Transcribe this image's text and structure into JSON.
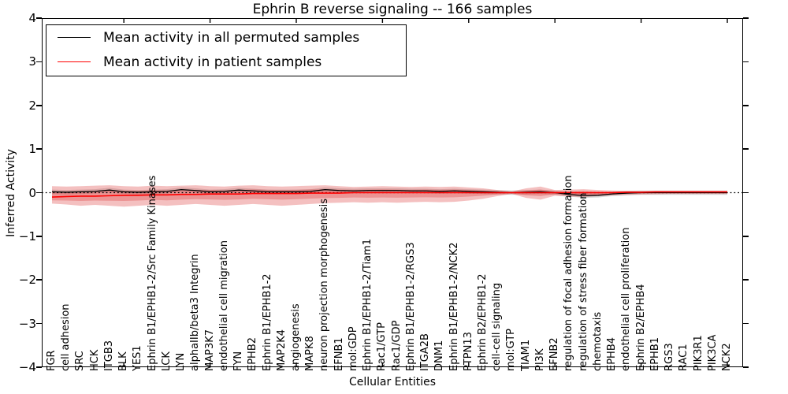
{
  "title": "Ephrin B reverse signaling -- 166 samples",
  "axes": {
    "ylabel": "Inferred Activity",
    "xlabel": "Cellular Entities",
    "ylim": [
      -4,
      4
    ],
    "yticks": [
      {
        "v": 4,
        "label": "4"
      },
      {
        "v": 3,
        "label": "3"
      },
      {
        "v": 2,
        "label": "2"
      },
      {
        "v": 1,
        "label": "1"
      },
      {
        "v": 0,
        "label": "0"
      },
      {
        "v": -1,
        "label": "−1"
      },
      {
        "v": -2,
        "label": "−2"
      },
      {
        "v": -3,
        "label": "−3"
      },
      {
        "v": -4,
        "label": "−4"
      }
    ]
  },
  "legend": {
    "items": [
      {
        "label": "Mean activity in all permuted samples",
        "color": "#000000"
      },
      {
        "label": "Mean activity in patient samples",
        "color": "#ff0000"
      }
    ]
  },
  "chart_data": {
    "type": "line",
    "title": "Ephrin B reverse signaling -- 166 samples",
    "xlabel": "Cellular Entities",
    "ylabel": "Inferred Activity",
    "ylim": [
      -4,
      4
    ],
    "zero_line": {
      "value": 0,
      "style": "dotted",
      "color": "#000000"
    },
    "categories": [
      "FGR",
      "cell adhesion",
      "SRC",
      "HCK",
      "ITGB3",
      "BLK",
      "YES1",
      "Ephrin B1/EPHB1-2/Src Family Kinases",
      "LCK",
      "LYN",
      "alphaIIb/beta3 Integrin",
      "MAP3K7",
      "endothelial cell migration",
      "FYN",
      "EPHB2",
      "Ephrin B1/EPHB1-2",
      "MAP2K4",
      "angiogenesis",
      "MAPK8",
      "neuron projection morphogenesis",
      "EFNB1",
      "mol:GDP",
      "Ephrin B1/EPHB1-2/Tiam1",
      "Rac1/GTP",
      "Rac1/GDP",
      "Ephrin B1/EPHB1-2/RGS3",
      "ITGA2B",
      "DNM1",
      "Ephrin B1/EPHB1-2/NCK2",
      "PTPN13",
      "Ephrin B2/EPHB1-2",
      "cell-cell signaling",
      "mol:GTP",
      "TIAM1",
      "PI3K",
      "EFNB2",
      "regulation of focal adhesion formation",
      "regulation of stress fiber formation",
      "chemotaxis",
      "EPHB4",
      "endothelial cell proliferation",
      "Ephrin B2/EPHB4",
      "EPHB1",
      "RGS3",
      "RAC1",
      "PIK3R1",
      "PIK3CA",
      "NCK2"
    ],
    "series": [
      {
        "name": "Mean activity in all permuted samples",
        "color": "#000000",
        "values": [
          0.02,
          0.01,
          0.02,
          0.03,
          0.06,
          0.02,
          0.01,
          0.02,
          0.03,
          0.07,
          0.05,
          0.02,
          0.03,
          0.06,
          0.04,
          0.02,
          0.02,
          0.02,
          0.03,
          0.07,
          0.05,
          0.04,
          0.05,
          0.05,
          0.05,
          0.04,
          0.04,
          0.03,
          0.04,
          0.03,
          0.02,
          0.01,
          0.0,
          0.01,
          0.02,
          0.0,
          -0.04,
          -0.07,
          -0.06,
          -0.03,
          -0.01,
          0.0,
          0.0,
          0.0,
          0.0,
          0.0,
          0.0,
          0.0
        ]
      },
      {
        "name": "Mean activity in patient samples",
        "color": "#ff0000",
        "values": [
          -0.1,
          -0.09,
          -0.08,
          -0.08,
          -0.07,
          -0.06,
          -0.06,
          -0.05,
          -0.05,
          -0.04,
          -0.04,
          -0.03,
          -0.03,
          -0.03,
          -0.02,
          -0.02,
          -0.02,
          -0.02,
          -0.01,
          -0.01,
          -0.01,
          0.0,
          0.0,
          0.0,
          0.0,
          0.0,
          0.0,
          0.0,
          0.0,
          0.0,
          0.0,
          0.0,
          0.0,
          0.0,
          0.0,
          0.0,
          0.0,
          0.0,
          0.0,
          0.0,
          0.01,
          0.01,
          0.02,
          0.02,
          0.02,
          0.02,
          0.02,
          0.02
        ]
      }
    ],
    "patient_band": {
      "fill": "#d92f2f",
      "opacity": 0.3,
      "inner_fraction": 0.5,
      "upper": [
        0.15,
        0.14,
        0.15,
        0.16,
        0.17,
        0.15,
        0.14,
        0.16,
        0.15,
        0.16,
        0.17,
        0.15,
        0.14,
        0.16,
        0.17,
        0.15,
        0.14,
        0.15,
        0.16,
        0.17,
        0.15,
        0.13,
        0.14,
        0.15,
        0.14,
        0.13,
        0.14,
        0.13,
        0.14,
        0.12,
        0.1,
        0.06,
        0.03,
        0.1,
        0.14,
        0.06,
        0.07,
        0.08,
        0.06,
        0.05,
        0.04,
        0.035,
        0.03,
        0.03,
        0.03,
        0.03,
        0.03,
        0.03
      ],
      "lower": [
        -0.25,
        -0.27,
        -0.3,
        -0.28,
        -0.3,
        -0.32,
        -0.3,
        -0.28,
        -0.3,
        -0.28,
        -0.26,
        -0.28,
        -0.3,
        -0.28,
        -0.26,
        -0.28,
        -0.3,
        -0.28,
        -0.26,
        -0.24,
        -0.23,
        -0.22,
        -0.23,
        -0.22,
        -0.23,
        -0.22,
        -0.21,
        -0.22,
        -0.21,
        -0.18,
        -0.14,
        -0.08,
        -0.03,
        -0.12,
        -0.16,
        -0.07,
        -0.09,
        -0.1,
        -0.08,
        -0.06,
        -0.05,
        -0.04,
        -0.035,
        -0.03,
        -0.03,
        -0.03,
        -0.03,
        -0.03
      ]
    },
    "permuted_band": {
      "halfwidth": 0.05,
      "fill": "#d4d4d4"
    },
    "frame_tick_every": 6,
    "frame_tick_start": 5,
    "grid": false,
    "legend_position": "upper left"
  }
}
